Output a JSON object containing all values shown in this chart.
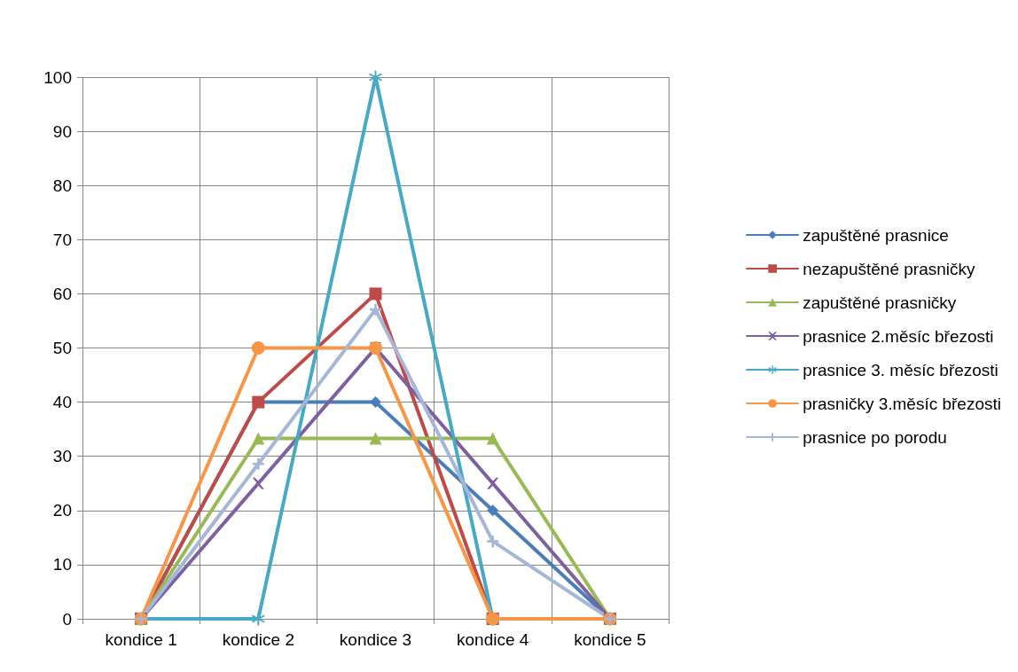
{
  "chart_data": {
    "type": "line",
    "categories": [
      "kondice 1",
      "kondice 2",
      "kondice 3",
      "kondice 4",
      "kondice 5"
    ],
    "series": [
      {
        "name": "zapuštěné prasnice",
        "color": "#4a7ebb",
        "marker": "diamond",
        "values": [
          0,
          40,
          40,
          20,
          0
        ]
      },
      {
        "name": "nezapuštěné prasničky",
        "color": "#be4b48",
        "marker": "square",
        "values": [
          0,
          40,
          60,
          0,
          0
        ]
      },
      {
        "name": "zapuštěné prasničky",
        "color": "#98b954",
        "marker": "triangle",
        "values": [
          0,
          33.3,
          33.3,
          33.3,
          0
        ]
      },
      {
        "name": "prasnice 2.měsíc březosti",
        "color": "#7d60a0",
        "marker": "cross",
        "values": [
          0,
          25,
          50,
          25,
          0
        ]
      },
      {
        "name": "prasnice 3. měsíc březosti",
        "color": "#46aac5",
        "marker": "star",
        "values": [
          0,
          0,
          100,
          0,
          0
        ]
      },
      {
        "name": "prasničky 3.měsíc březosti",
        "color": "#f79646",
        "marker": "circle",
        "values": [
          0,
          50,
          50,
          0,
          0
        ]
      },
      {
        "name": "prasnice po porodu",
        "color": "#a5b6d7",
        "marker": "plus",
        "values": [
          0,
          28.6,
          57.1,
          14.3,
          0
        ]
      }
    ],
    "ylim": [
      0,
      100
    ],
    "yticks": [
      0,
      10,
      20,
      30,
      40,
      50,
      60,
      70,
      80,
      90,
      100
    ],
    "grid": true,
    "legend": "right",
    "line_style": "solid"
  }
}
